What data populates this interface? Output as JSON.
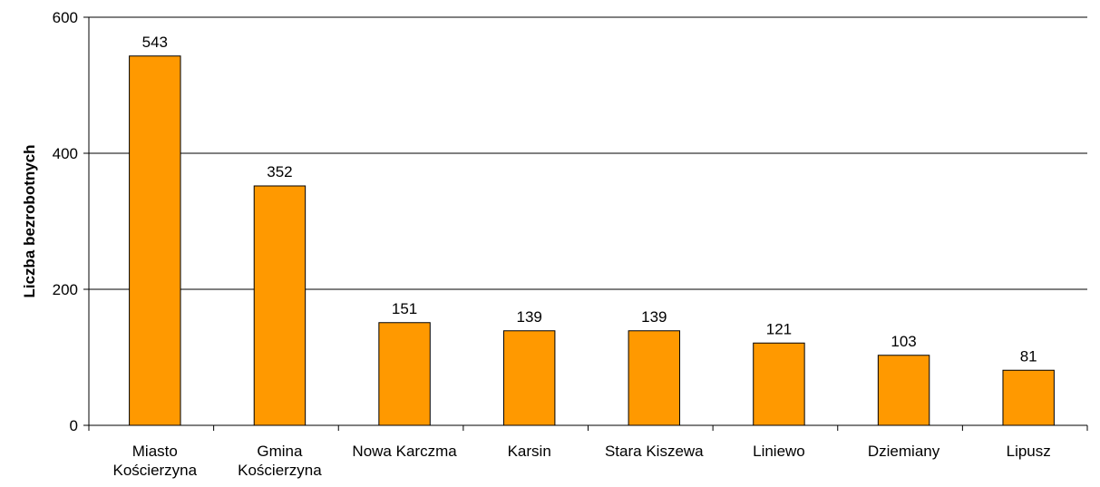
{
  "chart_data": {
    "type": "bar",
    "y_label": "Liczba bezrobotnych",
    "categories": [
      "Miasto Kościerzyna",
      "Gmina Kościerzyna",
      "Nowa Karczma",
      "Karsin",
      "Stara Kiszewa",
      "Liniewo",
      "Dziemiany",
      "Lipusz"
    ],
    "values": [
      543,
      352,
      151,
      139,
      139,
      121,
      103,
      81
    ],
    "color": "#ff9900",
    "ylim": [
      0,
      600
    ],
    "yticks": [
      0,
      200,
      400,
      600
    ],
    "grid": true
  }
}
